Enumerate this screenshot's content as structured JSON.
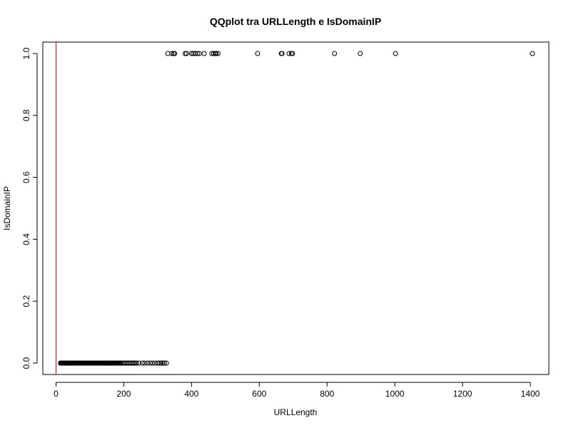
{
  "chart_data": {
    "type": "scatter",
    "title": "QQplot tra URLLength e IsDomainIP",
    "xlabel": "URLLength",
    "ylabel": "IsDomainIP",
    "xlim": [
      0,
      1400
    ],
    "ylim": [
      0.0,
      1.0
    ],
    "x_ticks": [
      "0",
      "200",
      "400",
      "600",
      "800",
      "1000",
      "1200",
      "1400"
    ],
    "y_ticks": [
      "0.0",
      "0.2",
      "0.4",
      "0.6",
      "0.8",
      "1.0"
    ],
    "reference_line": {
      "orientation": "vertical",
      "x": 0,
      "color": "#ff0000"
    },
    "series": [
      {
        "points": [
          [
            330,
            1
          ],
          [
            342,
            1
          ],
          [
            347,
            1
          ],
          [
            350,
            1
          ],
          [
            381,
            1
          ],
          [
            385,
            1
          ],
          [
            400,
            1
          ],
          [
            405,
            1
          ],
          [
            410,
            1
          ],
          [
            417,
            1
          ],
          [
            423,
            1
          ],
          [
            437,
            1
          ],
          [
            460,
            1
          ],
          [
            465,
            1
          ],
          [
            470,
            1
          ],
          [
            473,
            1
          ],
          [
            478,
            1
          ],
          [
            595,
            1
          ],
          [
            665,
            1
          ],
          [
            667,
            1
          ],
          [
            688,
            1
          ],
          [
            695,
            1
          ],
          [
            698,
            1
          ],
          [
            822,
            1
          ],
          [
            898,
            1
          ],
          [
            1002,
            1
          ],
          [
            1406,
            1
          ]
        ],
        "dense_ranges": [
          {
            "from": 13,
            "to": 190,
            "step": 2,
            "y": 0
          },
          {
            "from": 190,
            "to": 240,
            "step": 4,
            "y": 0
          }
        ],
        "extra_points": [
          [
            245,
            0
          ],
          [
            255,
            0
          ],
          [
            262,
            0
          ],
          [
            270,
            0
          ],
          [
            278,
            0
          ],
          [
            285,
            0
          ],
          [
            292,
            0
          ],
          [
            300,
            0
          ],
          [
            305,
            0
          ],
          [
            310,
            0
          ],
          [
            315,
            0
          ],
          [
            320,
            0
          ],
          [
            326,
            0
          ]
        ]
      }
    ]
  }
}
